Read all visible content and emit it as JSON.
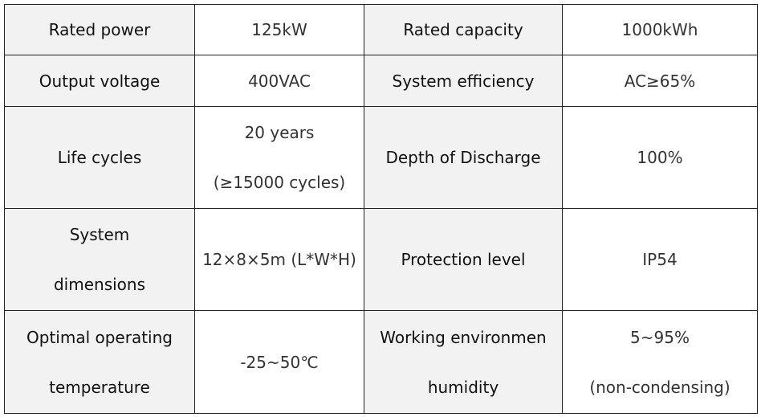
{
  "table": {
    "rows": [
      [
        [
          "Rated power"
        ],
        [
          "125kW"
        ],
        [
          "Rated capacity"
        ],
        [
          "1000kWh"
        ]
      ],
      [
        [
          "Output voltage"
        ],
        [
          "400VAC"
        ],
        [
          "System efficiency"
        ],
        [
          "AC≥65%"
        ]
      ],
      [
        [
          "Life cycles"
        ],
        [
          "20 years",
          "(≥15000 cycles)"
        ],
        [
          "Depth of Discharge"
        ],
        [
          "100%"
        ]
      ],
      [
        [
          "System",
          "dimensions"
        ],
        [
          "12×8×5m (L*W*H)"
        ],
        [
          "Protection level"
        ],
        [
          "IP54"
        ]
      ],
      [
        [
          "Optimal operating",
          "temperature"
        ],
        [
          "-25~50℃"
        ],
        [
          "Working environmen",
          "humidity"
        ],
        [
          "5~95%",
          "(non-condensing)"
        ]
      ]
    ]
  }
}
